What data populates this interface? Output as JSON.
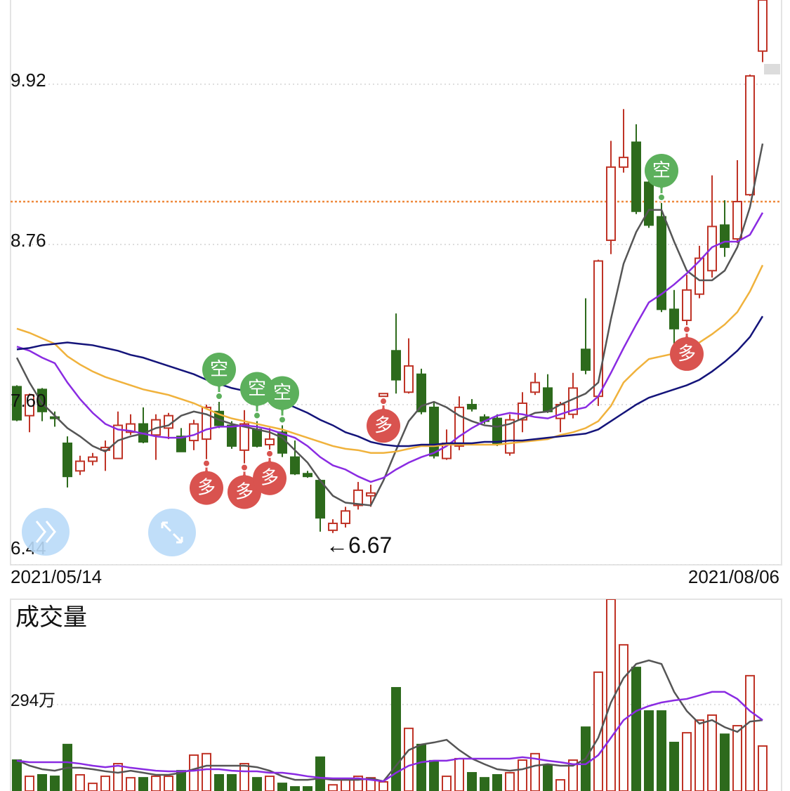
{
  "chart_data": [
    {
      "type": "candlestick",
      "categories": [
        "2021/05/14",
        null,
        null,
        null,
        null,
        null,
        null,
        null,
        null,
        null,
        null,
        null,
        null,
        null,
        null,
        null,
        null,
        null,
        null,
        null,
        null,
        null,
        null,
        null,
        null,
        null,
        null,
        null,
        null,
        null,
        null,
        null,
        null,
        null,
        null,
        null,
        null,
        null,
        null,
        null,
        null,
        null,
        null,
        null,
        null,
        null,
        null,
        null,
        null,
        null,
        null,
        null,
        null,
        null,
        null,
        null,
        null,
        null,
        null,
        "2021/08/06"
      ],
      "open": [
        7.73,
        7.52,
        7.71,
        7.51,
        7.32,
        7.12,
        7.19,
        7.27,
        7.21,
        7.4,
        7.46,
        7.38,
        7.43,
        7.37,
        7.34,
        7.35,
        7.55,
        7.45,
        7.27,
        7.42,
        7.31,
        7.4,
        7.22,
        7.1,
        7.05,
        6.69,
        6.74,
        6.87,
        6.94,
        7.66,
        7.99,
        7.69,
        7.82,
        7.58,
        7.21,
        7.3,
        7.6,
        7.51,
        7.5,
        7.25,
        7.49,
        7.69,
        7.72,
        7.5,
        7.53,
        8.0,
        7.66,
        8.79,
        9.32,
        9.5,
        9.21,
        8.96,
        8.29,
        8.21,
        8.4,
        8.57,
        8.9,
        8.8,
        9.12,
        10.16
      ],
      "high": [
        7.74,
        7.68,
        7.72,
        7.55,
        7.37,
        7.23,
        7.25,
        7.34,
        7.55,
        7.53,
        7.58,
        7.53,
        7.54,
        7.43,
        7.49,
        7.6,
        7.62,
        7.48,
        7.56,
        7.48,
        7.43,
        7.45,
        7.34,
        7.12,
        7.06,
        6.77,
        6.86,
        7.04,
        7.02,
        7.68,
        8.26,
        8.08,
        7.86,
        7.62,
        7.42,
        7.66,
        7.64,
        7.53,
        7.53,
        7.53,
        7.69,
        7.83,
        7.82,
        7.62,
        7.83,
        8.37,
        8.65,
        9.51,
        9.74,
        9.63,
        9.31,
        9.06,
        8.43,
        8.54,
        8.75,
        9.26,
        9.08,
        9.37,
        9.99,
        10.53
      ],
      "low": [
        7.48,
        7.4,
        7.48,
        7.44,
        7.0,
        7.09,
        7.16,
        7.12,
        7.21,
        7.38,
        7.32,
        7.2,
        7.35,
        7.26,
        7.27,
        7.2,
        7.43,
        7.28,
        7.17,
        7.29,
        7.27,
        7.22,
        7.09,
        7.07,
        6.68,
        6.67,
        6.71,
        6.84,
        6.86,
        7.65,
        7.68,
        7.68,
        7.53,
        7.21,
        7.2,
        7.27,
        7.55,
        7.46,
        7.3,
        7.23,
        7.4,
        7.67,
        7.54,
        7.4,
        7.5,
        7.82,
        7.59,
        8.69,
        9.28,
        8.98,
        8.88,
        8.27,
        7.99,
        8.17,
        8.37,
        8.52,
        8.67,
        8.77,
        9.11,
        10.08
      ],
      "close": [
        7.49,
        7.67,
        7.55,
        7.5,
        7.08,
        7.19,
        7.22,
        7.29,
        7.45,
        7.46,
        7.33,
        7.49,
        7.52,
        7.26,
        7.46,
        7.58,
        7.45,
        7.3,
        7.46,
        7.3,
        7.35,
        7.25,
        7.1,
        7.08,
        6.78,
        6.74,
        6.83,
        6.98,
        6.96,
        7.68,
        7.78,
        7.88,
        7.55,
        7.23,
        7.32,
        7.58,
        7.57,
        7.48,
        7.32,
        7.49,
        7.61,
        7.76,
        7.55,
        7.6,
        7.72,
        7.85,
        8.64,
        9.32,
        9.39,
        9.0,
        8.9,
        8.29,
        8.15,
        8.43,
        8.66,
        8.89,
        8.74,
        9.07,
        9.98,
        10.53
      ],
      "up_color": "#bf3326",
      "down_color": "#2d6a1c",
      "ylim": [
        6.44,
        10.53
      ],
      "yticks": [
        6.44,
        {
          "value": 7.6,
          "label": "7.60"
        },
        8.76,
        9.92
      ],
      "grid": true,
      "moving_averages": [
        {
          "color": "#555555",
          "values": [
            7.94,
            7.76,
            7.61,
            7.52,
            7.43,
            7.37,
            7.3,
            7.26,
            7.34,
            7.37,
            7.39,
            7.43,
            7.45,
            7.52,
            7.55,
            7.53,
            7.49,
            7.46,
            7.44,
            7.42,
            7.4,
            7.36,
            7.27,
            7.18,
            7.05,
            6.94,
            6.89,
            6.88,
            6.87,
            7.05,
            7.27,
            7.48,
            7.59,
            7.62,
            7.58,
            7.52,
            7.48,
            7.45,
            7.44,
            7.46,
            7.5,
            7.54,
            7.55,
            7.6,
            7.64,
            7.68,
            7.76,
            8.22,
            8.62,
            8.85,
            9.01,
            9.01,
            8.78,
            8.57,
            8.5,
            8.5,
            8.57,
            8.74,
            9.03,
            9.49
          ]
        },
        {
          "color": "#8a2be2",
          "values": [
            8.02,
            7.99,
            7.94,
            7.9,
            7.76,
            7.64,
            7.54,
            7.46,
            7.42,
            7.41,
            7.39,
            7.37,
            7.36,
            7.36,
            7.38,
            7.42,
            7.44,
            7.44,
            7.45,
            7.44,
            7.42,
            7.39,
            7.36,
            7.3,
            7.22,
            7.16,
            7.13,
            7.08,
            7.04,
            7.07,
            7.13,
            7.18,
            7.22,
            7.25,
            7.3,
            7.37,
            7.43,
            7.48,
            7.52,
            7.54,
            7.53,
            7.51,
            7.5,
            7.53,
            7.56,
            7.58,
            7.66,
            7.83,
            8.01,
            8.18,
            8.34,
            8.4,
            8.47,
            8.55,
            8.64,
            8.74,
            8.78,
            8.78,
            8.83,
            8.99
          ]
        },
        {
          "color": "#f0b23c",
          "values": [
            8.15,
            8.12,
            8.08,
            8.04,
            7.95,
            7.89,
            7.84,
            7.8,
            7.77,
            7.74,
            7.71,
            7.69,
            7.67,
            7.64,
            7.61,
            7.57,
            7.53,
            7.5,
            7.48,
            7.46,
            7.44,
            7.42,
            7.39,
            7.36,
            7.33,
            7.3,
            7.28,
            7.27,
            7.25,
            7.25,
            7.26,
            7.28,
            7.3,
            7.3,
            7.31,
            7.31,
            7.31,
            7.31,
            7.31,
            7.32,
            7.33,
            7.34,
            7.35,
            7.38,
            7.4,
            7.43,
            7.48,
            7.59,
            7.76,
            7.85,
            7.93,
            7.95,
            7.97,
            8.0,
            8.05,
            8.11,
            8.18,
            8.27,
            8.42,
            8.61
          ]
        },
        {
          "color": "#14147a",
          "values": [
            8.0,
            8.01,
            8.03,
            8.04,
            8.05,
            8.04,
            8.03,
            8.01,
            7.99,
            7.96,
            7.94,
            7.91,
            7.88,
            7.85,
            7.82,
            7.78,
            7.75,
            7.72,
            7.7,
            7.68,
            7.65,
            7.62,
            7.58,
            7.54,
            7.49,
            7.45,
            7.4,
            7.37,
            7.33,
            7.31,
            7.3,
            7.3,
            7.31,
            7.31,
            7.32,
            7.32,
            7.32,
            7.33,
            7.33,
            7.34,
            7.34,
            7.35,
            7.36,
            7.37,
            7.38,
            7.39,
            7.42,
            7.48,
            7.54,
            7.6,
            7.65,
            7.68,
            7.71,
            7.74,
            7.78,
            7.84,
            7.91,
            7.99,
            8.09,
            8.24
          ]
        }
      ],
      "reference_line": {
        "value": 9.07,
        "color": "#ef8a3e"
      },
      "signals": [
        {
          "index": 15,
          "label": "多",
          "color": "#d9534f",
          "position": "below"
        },
        {
          "index": 16,
          "label": "空",
          "color": "#5cb05c",
          "position": "above"
        },
        {
          "index": 18,
          "label": "多",
          "color": "#d9534f",
          "position": "below"
        },
        {
          "index": 19,
          "label": "空",
          "color": "#5cb05c",
          "position": "above"
        },
        {
          "index": 20,
          "label": "多",
          "color": "#d9534f",
          "position": "below"
        },
        {
          "index": 21,
          "label": "空",
          "color": "#5cb05c",
          "position": "above"
        },
        {
          "index": 29,
          "label": "多",
          "color": "#d9534f",
          "position": "below"
        },
        {
          "index": 51,
          "label": "空",
          "color": "#5cb05c",
          "position": "above"
        },
        {
          "index": 53,
          "label": "多",
          "color": "#d9534f",
          "position": "below"
        }
      ],
      "annotations": [
        {
          "index": 25,
          "text": "←6.67"
        }
      ]
    },
    {
      "type": "bar",
      "title": "成交量",
      "values": [
        105,
        50,
        55,
        50,
        158,
        55,
        26,
        50,
        93,
        45,
        45,
        50,
        50,
        69,
        122,
        127,
        55,
        55,
        93,
        45,
        50,
        26,
        14,
        14,
        115,
        21,
        38,
        50,
        45,
        31,
        351,
        213,
        158,
        103,
        50,
        110,
        62,
        45,
        55,
        62,
        105,
        127,
        86,
        38,
        105,
        217,
        404,
        652,
        497,
        420,
        272,
        272,
        165,
        198,
        241,
        258,
        193,
        222,
        392,
        153
      ],
      "ylim": [
        0,
        652
      ],
      "yticks": [
        {
          "value": 294,
          "label": "294万"
        }
      ],
      "grid": true,
      "moving_averages": [
        {
          "color": "#555555",
          "values": [
            105,
            86,
            74,
            69,
            79,
            79,
            74,
            67,
            62,
            69,
            62,
            55,
            55,
            62,
            74,
            86,
            86,
            86,
            86,
            81,
            69,
            50,
            38,
            38,
            43,
            38,
            38,
            38,
            43,
            33,
            86,
            139,
            158,
            165,
            174,
            139,
            110,
            91,
            74,
            69,
            74,
            86,
            91,
            86,
            86,
            110,
            181,
            301,
            384,
            432,
            444,
            432,
            337,
            272,
            229,
            241,
            217,
            201,
            236,
            241
          ]
        },
        {
          "color": "#8a2be2",
          "values": [
            103,
            98,
            98,
            98,
            98,
            93,
            86,
            81,
            86,
            79,
            74,
            69,
            67,
            67,
            69,
            74,
            74,
            69,
            67,
            67,
            62,
            62,
            57,
            50,
            45,
            43,
            43,
            43,
            38,
            33,
            62,
            86,
            98,
            103,
            103,
            110,
            110,
            110,
            110,
            110,
            115,
            110,
            103,
            98,
            91,
            91,
            122,
            181,
            241,
            272,
            289,
            301,
            308,
            313,
            325,
            337,
            337,
            313,
            272,
            241
          ]
        }
      ]
    }
  ]
}
